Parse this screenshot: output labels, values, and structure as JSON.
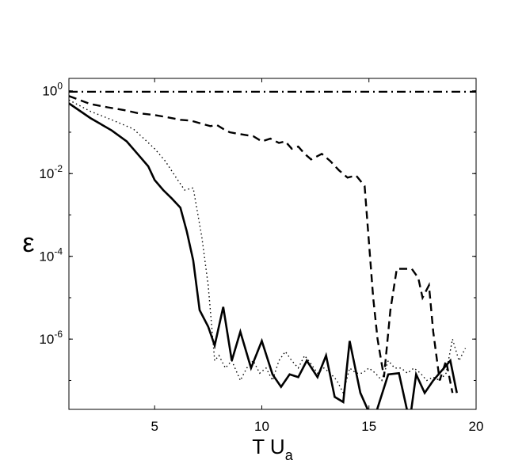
{
  "chart_data": {
    "type": "line",
    "xlabel": "T U",
    "xlabel_subscript": "a",
    "ylabel": "ε",
    "yscale": "log",
    "xlim": [
      1,
      20
    ],
    "ylim": [
      2e-08,
      2
    ],
    "xticks": [
      5,
      10,
      15,
      20
    ],
    "xtick_labels": [
      "5",
      "10",
      "15",
      "20"
    ],
    "yticks": [
      1,
      0.01,
      0.0001,
      1e-06
    ],
    "ytick_labels": [
      {
        "base": "10",
        "exp": "0"
      },
      {
        "base": "10",
        "exp": "-2"
      },
      {
        "base": "10",
        "exp": "-4"
      },
      {
        "base": "10",
        "exp": "-6"
      }
    ],
    "grid": false,
    "series": [
      {
        "style": "dashdot",
        "x": [
          1,
          20
        ],
        "y": [
          0.95,
          0.95
        ]
      },
      {
        "style": "dashed",
        "x": [
          1.0,
          1.5,
          2.0,
          2.8,
          3.6,
          4.2,
          5.0,
          5.6,
          6.2,
          6.7,
          7.2,
          7.6,
          7.9,
          8.2,
          8.5,
          9.0,
          9.6,
          10.0,
          10.4,
          10.8,
          11.1,
          11.4,
          11.7,
          12.0,
          12.3,
          12.8,
          13.2,
          13.6,
          14.0,
          14.4,
          14.8,
          15.2,
          15.4,
          15.7,
          16.0,
          16.3,
          16.7,
          17.0,
          17.3,
          17.5,
          17.8,
          18.0,
          18.3,
          18.6,
          18.9
        ],
        "y": [
          0.75,
          0.6,
          0.48,
          0.4,
          0.34,
          0.29,
          0.26,
          0.23,
          0.2,
          0.19,
          0.16,
          0.14,
          0.15,
          0.12,
          0.1,
          0.09,
          0.08,
          0.06,
          0.07,
          0.055,
          0.06,
          0.04,
          0.045,
          0.03,
          0.022,
          0.03,
          0.02,
          0.012,
          0.008,
          0.009,
          0.005,
          1e-05,
          1e-06,
          1.2e-07,
          5e-06,
          5e-05,
          5e-05,
          5e-05,
          3e-05,
          1e-05,
          2e-05,
          1.5e-06,
          1e-07,
          3e-07,
          5e-08
        ]
      },
      {
        "style": "dotted",
        "x": [
          1.0,
          2.0,
          3.0,
          4.0,
          4.5,
          5.0,
          5.5,
          6.0,
          6.4,
          6.8,
          7.2,
          7.5,
          7.8,
          8.0,
          8.3,
          8.6,
          9.0,
          9.3,
          9.6,
          9.9,
          10.2,
          10.5,
          10.8,
          11.1,
          11.4,
          11.7,
          12.0,
          12.3,
          12.6,
          12.9,
          13.2,
          13.5,
          13.8,
          14.1,
          14.4,
          14.7,
          15.0,
          15.3,
          15.6,
          15.9,
          16.2,
          16.5,
          16.8,
          17.1,
          17.4,
          17.7,
          18.0,
          18.3,
          18.6,
          18.9,
          19.2,
          19.5
        ],
        "y": [
          0.6,
          0.32,
          0.2,
          0.12,
          0.07,
          0.04,
          0.02,
          0.008,
          0.004,
          0.0045,
          0.0003,
          2e-05,
          3e-07,
          4e-07,
          2e-07,
          3e-07,
          1e-07,
          2e-07,
          3e-07,
          1.5e-07,
          2e-07,
          1e-07,
          3e-07,
          5e-07,
          3e-07,
          2e-07,
          4e-07,
          2.5e-07,
          1.5e-07,
          2e-07,
          1.5e-07,
          1e-07,
          5e-08,
          2e-07,
          1.5e-07,
          1.5e-07,
          2e-07,
          1.5e-07,
          1e-07,
          3e-07,
          2e-07,
          2e-07,
          1.5e-07,
          2e-07,
          1.5e-07,
          1e-07,
          1.2e-07,
          1e-07,
          1.5e-07,
          1e-06,
          3e-07,
          6e-07
        ]
      },
      {
        "style": "solid",
        "x": [
          1.0,
          2.0,
          3.0,
          3.7,
          4.2,
          4.7,
          5.0,
          5.4,
          5.8,
          6.2,
          6.5,
          6.8,
          7.1,
          7.5,
          7.8,
          8.2,
          8.6,
          9.0,
          9.5,
          10.0,
          10.5,
          10.9,
          11.3,
          11.7,
          12.1,
          12.6,
          13.0,
          13.4,
          13.8,
          14.1,
          14.6,
          15.2,
          15.9,
          16.4,
          16.9,
          17.2,
          17.6,
          18.0,
          18.5,
          18.8,
          19.1
        ],
        "y": [
          0.5,
          0.22,
          0.11,
          0.06,
          0.03,
          0.015,
          0.007,
          0.004,
          0.0025,
          0.0015,
          0.0004,
          8e-05,
          5e-06,
          2e-06,
          7e-07,
          6e-06,
          3e-07,
          1.5e-06,
          2e-07,
          9e-07,
          1.4e-07,
          7e-08,
          1.4e-07,
          1.2e-07,
          3e-07,
          1.2e-07,
          4e-07,
          4e-08,
          3e-08,
          9e-07,
          5e-08,
          1e-08,
          1.4e-07,
          1.5e-07,
          1e-08,
          1.4e-07,
          5e-08,
          1e-07,
          2e-07,
          3e-07,
          5e-08
        ]
      }
    ]
  }
}
